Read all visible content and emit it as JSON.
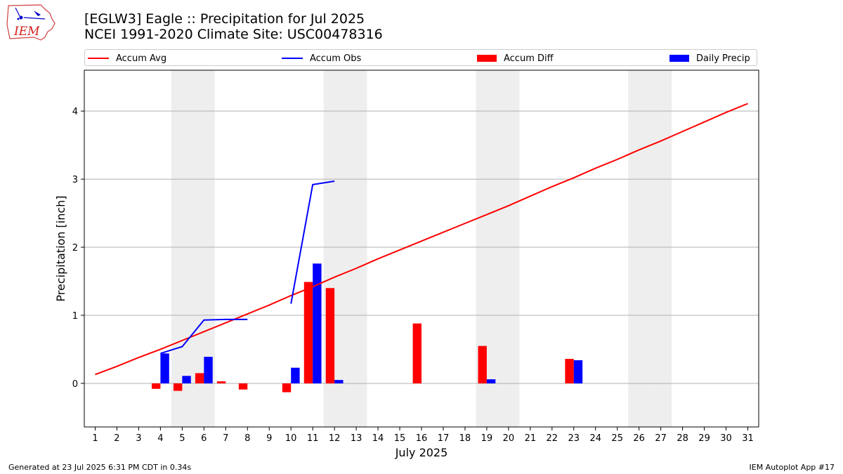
{
  "title_line1": "[EGLW3] Eagle :: Precipitation for Jul 2025",
  "title_line2": "NCEI 1991-2020 Climate Site: USC00478316",
  "logo_text": "IEM",
  "footer": {
    "generated": "Generated at 23 Jul 2025 6:31 PM CDT in 0.34s",
    "app": "IEM Autoplot App #17"
  },
  "colors": {
    "avg": "#ff0000",
    "obs": "#0000ff",
    "diff": "#ff0000",
    "daily": "#0000ff",
    "weekend": "#eeeeee",
    "grid": "#b0b0b0"
  },
  "chart_data": {
    "type": "bar",
    "xlabel": "July 2025",
    "ylabel": "Precipitation [inch]",
    "xlim": [
      0.5,
      31.5
    ],
    "ylim": [
      -0.64,
      4.6
    ],
    "yticks": [
      0,
      1,
      2,
      3,
      4
    ],
    "grid": "horizontal",
    "legend_placement": "top",
    "x": [
      1,
      2,
      3,
      4,
      5,
      6,
      7,
      8,
      9,
      10,
      11,
      12,
      13,
      14,
      15,
      16,
      17,
      18,
      19,
      20,
      21,
      22,
      23,
      24,
      25,
      26,
      27,
      28,
      29,
      30,
      31
    ],
    "weekend_days": [
      5,
      6,
      12,
      13,
      19,
      20,
      26,
      27
    ],
    "series": [
      {
        "name": "Accum Avg",
        "kind": "line",
        "values": [
          0.13,
          0.25,
          0.38,
          0.5,
          0.63,
          0.76,
          0.89,
          1.02,
          1.15,
          1.29,
          1.42,
          1.56,
          1.69,
          1.83,
          1.96,
          2.09,
          2.22,
          2.35,
          2.48,
          2.61,
          2.75,
          2.89,
          3.02,
          3.16,
          3.29,
          3.43,
          3.56,
          3.7,
          3.84,
          3.98,
          4.11
        ]
      },
      {
        "name": "Accum Obs",
        "kind": "line",
        "segments": [
          {
            "x": [
              4,
              5,
              6,
              7,
              8
            ],
            "y": [
              0.44,
              0.54,
              0.93,
              0.94,
              0.94
            ]
          },
          {
            "x": [
              10,
              11,
              12
            ],
            "y": [
              1.17,
              2.92,
              2.97
            ]
          }
        ]
      },
      {
        "name": "Accum Diff",
        "kind": "bar",
        "points": [
          {
            "x": 4,
            "y": -0.08
          },
          {
            "x": 5,
            "y": -0.11
          },
          {
            "x": 6,
            "y": 0.15
          },
          {
            "x": 7,
            "y": 0.03
          },
          {
            "x": 8,
            "y": -0.09
          },
          {
            "x": 10,
            "y": -0.13
          },
          {
            "x": 11,
            "y": 1.49
          },
          {
            "x": 12,
            "y": 1.4
          },
          {
            "x": 16,
            "y": 0.88
          },
          {
            "x": 19,
            "y": 0.55
          },
          {
            "x": 23,
            "y": 0.36
          }
        ]
      },
      {
        "name": "Daily Precip",
        "kind": "bar",
        "points": [
          {
            "x": 4,
            "y": 0.44
          },
          {
            "x": 5,
            "y": 0.11
          },
          {
            "x": 6,
            "y": 0.39
          },
          {
            "x": 10,
            "y": 0.23
          },
          {
            "x": 11,
            "y": 1.76
          },
          {
            "x": 12,
            "y": 0.05
          },
          {
            "x": 19,
            "y": 0.06
          },
          {
            "x": 23,
            "y": 0.34
          }
        ]
      }
    ]
  }
}
